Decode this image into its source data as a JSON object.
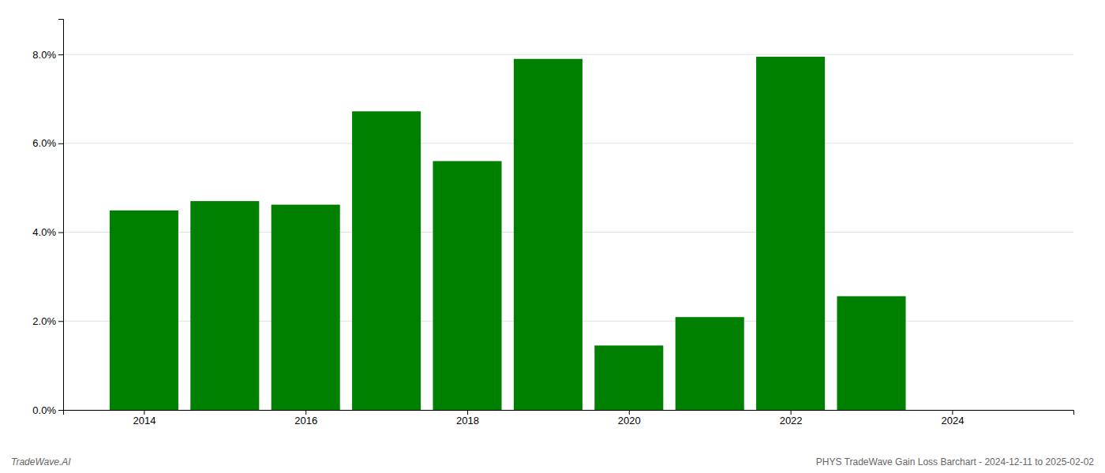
{
  "chart_data": {
    "type": "bar",
    "x": [
      2014,
      2015,
      2016,
      2017,
      2018,
      2019,
      2020,
      2021,
      2022,
      2023
    ],
    "values": [
      0.0449,
      0.047,
      0.0462,
      0.0672,
      0.056,
      0.079,
      0.0145,
      0.0209,
      0.0795,
      0.0256
    ],
    "color": "#008000",
    "xlim": [
      2013.0,
      2025.5
    ],
    "xticks": [
      2014,
      2016,
      2018,
      2020,
      2022,
      2024
    ],
    "ylim": [
      0,
      0.088
    ],
    "yticks": [
      {
        "value": 0.0,
        "label": "0.0%"
      },
      {
        "value": 0.02,
        "label": "2.0%"
      },
      {
        "value": 0.04,
        "label": "4.0%"
      },
      {
        "value": 0.06,
        "label": "6.0%"
      },
      {
        "value": 0.08,
        "label": "8.0%"
      }
    ],
    "grid": true,
    "annotations": [
      "TradeWave.AI",
      "PHYS TradeWave Gain Loss Barchart - 2024-12-11 to 2025-02-02"
    ]
  }
}
